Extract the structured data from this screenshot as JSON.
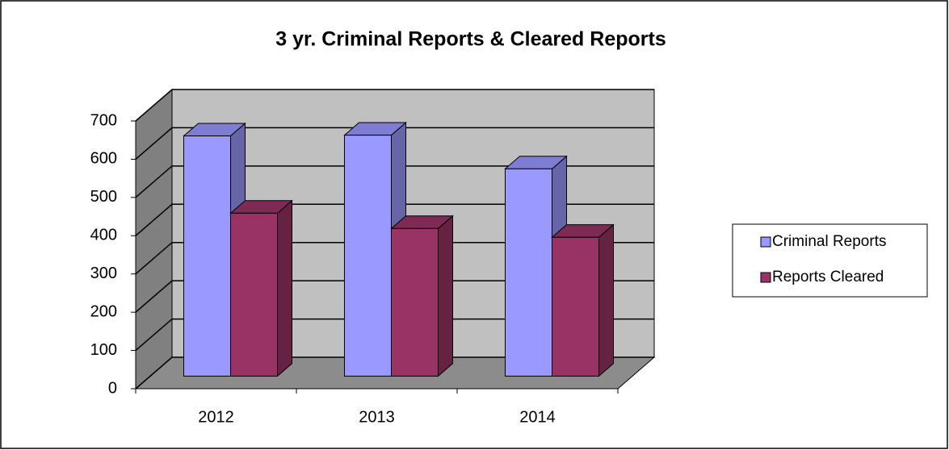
{
  "chart_data": {
    "type": "bar3d",
    "title": "3 yr. Criminal Reports & Cleared Reports",
    "categories": [
      "2012",
      "2013",
      "2014"
    ],
    "series": [
      {
        "name": "Criminal Reports",
        "color": "#9999ff",
        "values": [
          628,
          630,
          542
        ]
      },
      {
        "name": "Reports Cleared",
        "color": "#993366",
        "values": [
          426,
          386,
          363
        ]
      }
    ],
    "ylim": [
      0,
      700
    ],
    "yticks": [
      0,
      100,
      200,
      300,
      400,
      500,
      600,
      700
    ],
    "grid": true,
    "legend": "right"
  }
}
